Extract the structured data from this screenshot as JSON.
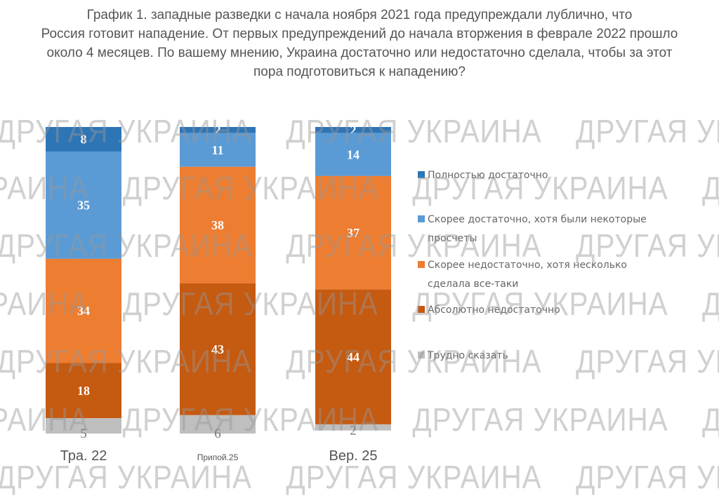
{
  "title_lines": [
    "График 1. западные разведки с начала ноября 2021 года предупреждали лублично, что",
    "Россия готовит нападение. От первых предупреждений до начала вторжения в феврале 2022 прошло",
    "около 4 месяцев. По вашему мнению, Украина достаточно или недостаточно сделала, чтобы за этот",
    "пора подготовиться к нападению?"
  ],
  "watermark": "ДРУГАЯ УКРАИНА",
  "chart_data": {
    "type": "bar",
    "stacked": true,
    "title": "График 1. западные разведки с начала ноября 2021 года предупреждали лублично, что Россия готовит нападение. От первых предупреждений до начала вторжения в феврале 2022 прошло около 4 месяцев. По вашему мнению, Украина достаточно или недостаточно сделала, чтобы за этот пора подготовиться к нападению?",
    "categories": [
      "Тра. 22",
      "Припой.25",
      "Вер. 25"
    ],
    "series": [
      {
        "name": "Полностью достаточно",
        "color": "#2e75b6",
        "values": [
          8,
          2,
          2
        ]
      },
      {
        "name": "Скорее достаточно, хотя были некоторые просчеты",
        "color": "#5b9bd5",
        "values": [
          35,
          11,
          14
        ]
      },
      {
        "name": "Скорее недостаточно, хотя несколько сделала все-таки",
        "color": "#ed7d31",
        "values": [
          34,
          38,
          37
        ]
      },
      {
        "name": "Абсолютно недостаточно",
        "color": "#c55a11",
        "values": [
          18,
          43,
          44
        ]
      },
      {
        "name": "Трудно сказать",
        "color": "#bfbfbf",
        "values": [
          5,
          6,
          2
        ]
      }
    ],
    "legend_lines": [
      [
        "Полностью достаточно"
      ],
      [
        "Скорее достаточно, хотя были некоторые",
        "просчеты"
      ],
      [
        "Скорее недостаточно, хотя несколько",
        "сделала все-таки"
      ],
      [
        "Абсолютно недостаточно"
      ],
      [
        "Трудно сказать"
      ]
    ],
    "legend_position": "right",
    "ylim": [
      0,
      100
    ],
    "grid": false,
    "data_labels": true
  }
}
